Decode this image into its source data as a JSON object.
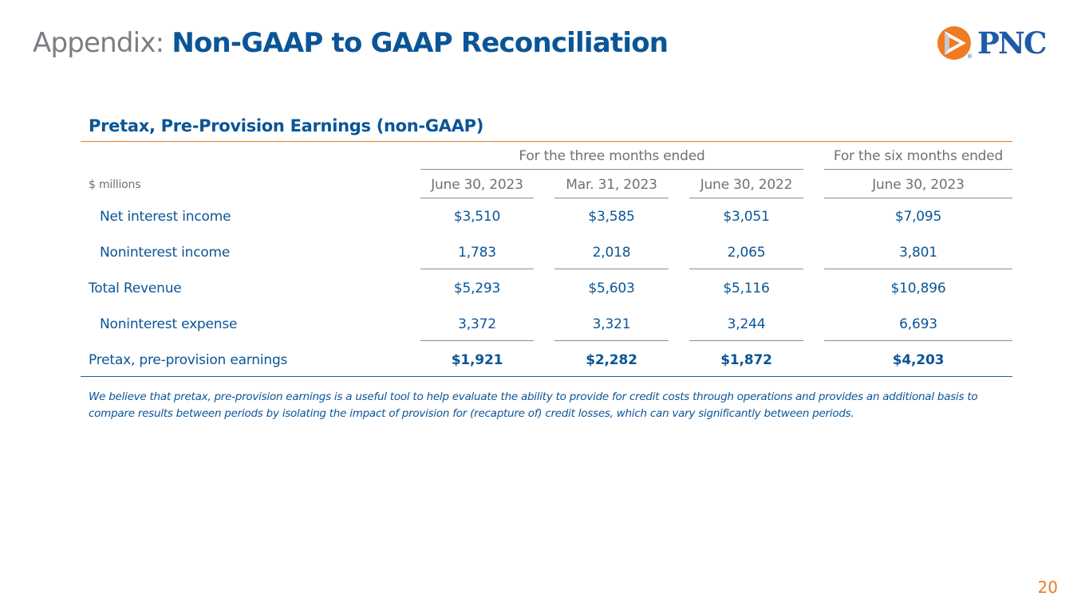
{
  "slide": {
    "title_prefix": "Appendix: ",
    "title_main": "Non-GAAP to GAAP Reconciliation",
    "page_number": "20"
  },
  "logo": {
    "wordmark": "PNC",
    "registered_mark": "®",
    "icon": "pnc-triangle-logo-icon",
    "colors": {
      "orange": "#ef7b22",
      "blue": "#1f5ba8"
    }
  },
  "table": {
    "title": "Pretax, Pre-Provision Earnings (non-GAAP)",
    "group_headers": {
      "three_months": "For the three months ended",
      "six_months": "For the six months ended"
    },
    "unit_label": "$ millions",
    "columns": [
      "June 30, 2023",
      "Mar. 31, 2023",
      "June 30, 2022",
      "June 30, 2023"
    ],
    "rows": [
      {
        "label": "Net interest income",
        "values": [
          "$3,510",
          "$3,585",
          "$3,051",
          "$7,095"
        ]
      },
      {
        "label": "Noninterest income",
        "values": [
          "1,783",
          "2,018",
          "2,065",
          "3,801"
        ]
      },
      {
        "label": "Total Revenue",
        "values": [
          "$5,293",
          "$5,603",
          "$5,116",
          "$10,896"
        ]
      },
      {
        "label": "Noninterest expense",
        "values": [
          "3,372",
          "3,321",
          "3,244",
          "6,693"
        ]
      },
      {
        "label": "Pretax, pre-provision earnings",
        "values": [
          "$1,921",
          "$2,282",
          "$1,872",
          "$4,203"
        ]
      }
    ]
  },
  "footnote": "We believe that pretax, pre-provision earnings is a useful tool to help evaluate the ability to provide for credit costs through operations and provides an additional basis to compare results between periods by isolating the impact of provision for (recapture of) credit losses, which can vary significantly between periods.",
  "colors": {
    "title_blue": "#0a5597",
    "accent_orange": "#ef7b22",
    "muted_gray": "#7a7e82"
  }
}
